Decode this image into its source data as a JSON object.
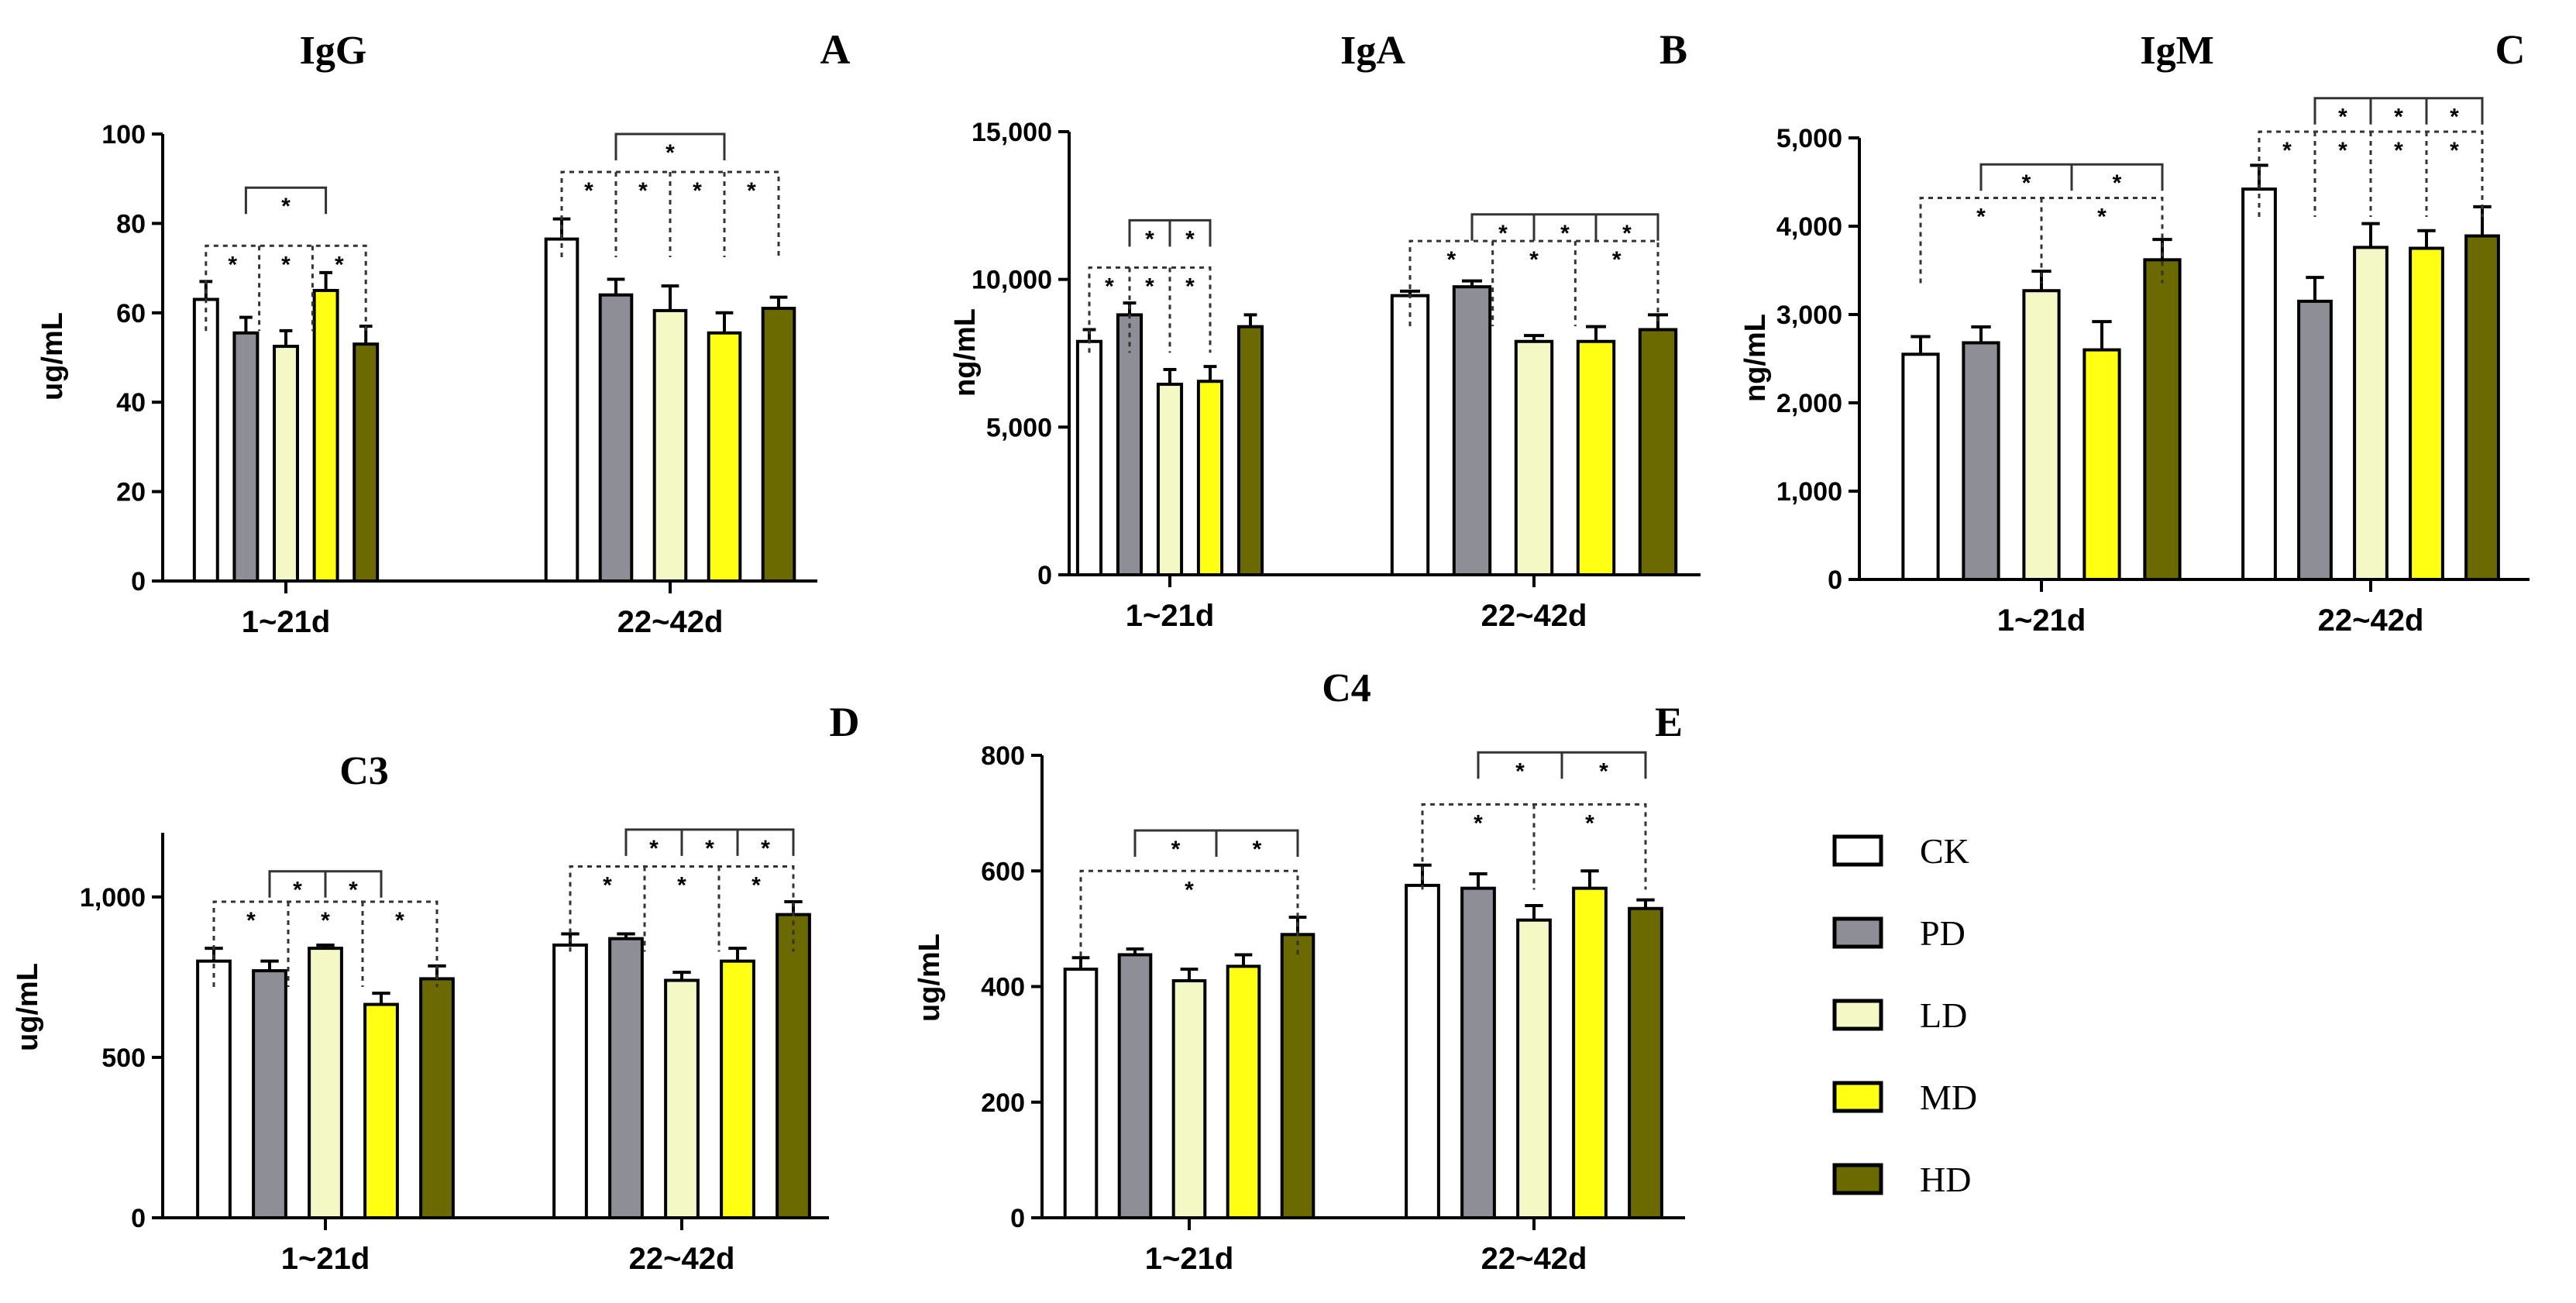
{
  "colors": {
    "CK": "#ffffff",
    "PD": "#8e8e96",
    "LD": "#f4f8c4",
    "MD": "#ffff14",
    "HD": "#6b6a00"
  },
  "legend": [
    "CK",
    "PD",
    "LD",
    "MD",
    "HD"
  ],
  "chart_data": [
    {
      "id": "A",
      "letter": "A",
      "title": "IgG",
      "type": "bar",
      "ylabel": "ug/mL",
      "ylim": [
        0,
        100
      ],
      "yticks": [
        0,
        20,
        40,
        60,
        80,
        100
      ],
      "ytick_labels": [
        "0",
        "20",
        "40",
        "60",
        "80",
        "100"
      ],
      "categories": [
        "1~21d",
        "22~42d"
      ],
      "series": [
        {
          "name": "CK",
          "values": [
            63,
            76.5
          ],
          "errors": [
            4,
            4.5
          ]
        },
        {
          "name": "PD",
          "values": [
            55.5,
            64
          ],
          "errors": [
            3.5,
            3.5
          ]
        },
        {
          "name": "LD",
          "values": [
            52.5,
            60.5
          ],
          "errors": [
            3.5,
            5.5
          ]
        },
        {
          "name": "MD",
          "values": [
            65,
            55.5
          ],
          "errors": [
            4,
            4.5
          ]
        },
        {
          "name": "HD",
          "values": [
            53,
            61
          ],
          "errors": [
            4,
            2.5
          ]
        }
      ],
      "significance": [
        {
          "group": 0,
          "from": 1,
          "to": 3,
          "style": "solid",
          "level": 88,
          "stars": [
            "*"
          ]
        },
        {
          "group": 0,
          "from": 0,
          "to": 4,
          "style": "dotted",
          "level": 75,
          "stars": [
            "*",
            "*",
            "*"
          ]
        },
        {
          "group": 1,
          "from": 1,
          "to": 3,
          "style": "solid",
          "level": 100,
          "stars": [
            "*"
          ]
        },
        {
          "group": 1,
          "from": 0,
          "to": 4,
          "style": "dotted",
          "level": 91.5,
          "stars": [
            "*",
            "*",
            "*",
            "*"
          ]
        }
      ]
    },
    {
      "id": "B",
      "letter": "B",
      "title": "IgA",
      "type": "bar",
      "ylabel": "ng/mL",
      "ylim": [
        0,
        15000
      ],
      "yticks": [
        0,
        5000,
        10000,
        15000
      ],
      "ytick_labels": [
        "0",
        "5,000",
        "10,000",
        "15,000"
      ],
      "categories": [
        "1~21d",
        "22~42d"
      ],
      "series": [
        {
          "name": "CK",
          "values": [
            7900,
            9450
          ],
          "errors": [
            400,
            150
          ]
        },
        {
          "name": "PD",
          "values": [
            8800,
            9750
          ],
          "errors": [
            400,
            200
          ]
        },
        {
          "name": "LD",
          "values": [
            6450,
            7900
          ],
          "errors": [
            500,
            200
          ]
        },
        {
          "name": "MD",
          "values": [
            6550,
            7900
          ],
          "errors": [
            500,
            500
          ]
        },
        {
          "name": "HD",
          "values": [
            8400,
            8300
          ],
          "errors": [
            400,
            500
          ]
        }
      ],
      "significance": [
        {
          "group": 0,
          "from": 1,
          "to": 3,
          "style": "solid",
          "level": 12000,
          "stars": [
            "*",
            "*"
          ]
        },
        {
          "group": 0,
          "from": 0,
          "to": 3,
          "style": "dotted",
          "level": 10400,
          "stars": [
            "*",
            "*",
            "*"
          ]
        },
        {
          "group": 1,
          "from": 1,
          "to": 4,
          "style": "solid",
          "level": 12200,
          "stars": [
            "*",
            "*",
            "*"
          ]
        },
        {
          "group": 1,
          "from": 0,
          "to": 4,
          "style": "dotted",
          "level": 11300,
          "stars": [
            "*",
            "*",
            "*"
          ]
        }
      ]
    },
    {
      "id": "C",
      "letter": "C",
      "title": "IgM",
      "type": "bar",
      "ylabel": "ng/mL",
      "ylim": [
        0,
        5000
      ],
      "yticks": [
        0,
        1000,
        2000,
        3000,
        4000,
        5000
      ],
      "ytick_labels": [
        "0",
        "1,000",
        "2,000",
        "3,000",
        "4,000",
        "5,000"
      ],
      "categories": [
        "1~21d",
        "22~42d"
      ],
      "series": [
        {
          "name": "CK",
          "values": [
            2550,
            4420
          ],
          "errors": [
            200,
            270
          ]
        },
        {
          "name": "PD",
          "values": [
            2680,
            3150
          ],
          "errors": [
            180,
            270
          ]
        },
        {
          "name": "LD",
          "values": [
            3270,
            3760
          ],
          "errors": [
            220,
            270
          ]
        },
        {
          "name": "MD",
          "values": [
            2600,
            3750
          ],
          "errors": [
            320,
            200
          ]
        },
        {
          "name": "HD",
          "values": [
            3620,
            3890
          ],
          "errors": [
            230,
            330
          ]
        }
      ],
      "significance": [
        {
          "group": 0,
          "from": 1,
          "to": 4,
          "style": "solid",
          "level": 4700,
          "stars": [
            "*",
            "*"
          ]
        },
        {
          "group": 0,
          "from": 0,
          "to": 4,
          "style": "dotted",
          "level": 4320,
          "stars": [
            "*",
            "*"
          ]
        },
        {
          "group": 1,
          "from": 1,
          "to": 4,
          "style": "solid",
          "level": 5450,
          "stars": [
            "*",
            "*",
            "*"
          ]
        },
        {
          "group": 1,
          "from": 0,
          "to": 4,
          "style": "dotted",
          "level": 5070,
          "stars": [
            "*",
            "*",
            "*",
            "*"
          ]
        }
      ]
    },
    {
      "id": "D",
      "letter": "D",
      "title": "C3",
      "type": "bar",
      "ylabel": "ug/mL",
      "ylim": [
        0,
        1200
      ],
      "yticks": [
        0,
        500,
        1000
      ],
      "ytick_labels": [
        "0",
        "500",
        "1,000"
      ],
      "categories": [
        "1~21d",
        "22~42d"
      ],
      "series": [
        {
          "name": "CK",
          "values": [
            800,
            850
          ],
          "errors": [
            40,
            35
          ]
        },
        {
          "name": "PD",
          "values": [
            770,
            870
          ],
          "errors": [
            30,
            15
          ]
        },
        {
          "name": "LD",
          "values": [
            840,
            740
          ],
          "errors": [
            10,
            25
          ]
        },
        {
          "name": "MD",
          "values": [
            665,
            800
          ],
          "errors": [
            35,
            40
          ]
        },
        {
          "name": "HD",
          "values": [
            745,
            945
          ],
          "errors": [
            40,
            40
          ]
        }
      ],
      "significance": [
        {
          "group": 0,
          "from": 1,
          "to": 3,
          "style": "solid",
          "level": 1080,
          "stars": [
            "*",
            "*"
          ]
        },
        {
          "group": 0,
          "from": 0,
          "to": 4,
          "style": "dotted",
          "level": 985,
          "stars": [
            "*",
            "*",
            "*"
          ]
        },
        {
          "group": 1,
          "from": 1,
          "to": 4,
          "style": "solid",
          "level": 1210,
          "stars": [
            "*",
            "*",
            "*"
          ]
        },
        {
          "group": 1,
          "from": 0,
          "to": 4,
          "style": "dotted",
          "level": 1095,
          "stars": [
            "*",
            "*",
            "*"
          ]
        }
      ]
    },
    {
      "id": "E",
      "letter": "E",
      "title": "C4",
      "type": "bar",
      "ylabel": "ug/mL",
      "ylim": [
        0,
        800
      ],
      "yticks": [
        0,
        200,
        400,
        600,
        800
      ],
      "ytick_labels": [
        "0",
        "200",
        "400",
        "600",
        "800"
      ],
      "categories": [
        "1~21d",
        "22~42d"
      ],
      "series": [
        {
          "name": "CK",
          "values": [
            430,
            575
          ],
          "errors": [
            20,
            35
          ]
        },
        {
          "name": "PD",
          "values": [
            455,
            570
          ],
          "errors": [
            10,
            25
          ]
        },
        {
          "name": "LD",
          "values": [
            410,
            515
          ],
          "errors": [
            20,
            25
          ]
        },
        {
          "name": "MD",
          "values": [
            435,
            570
          ],
          "errors": [
            20,
            30
          ]
        },
        {
          "name": "HD",
          "values": [
            490,
            535
          ],
          "errors": [
            30,
            15
          ]
        }
      ],
      "significance": [
        {
          "group": 0,
          "from": 1,
          "to": 4,
          "style": "solid",
          "level": 670,
          "stars": [
            "*",
            "*"
          ]
        },
        {
          "group": 0,
          "from": 0,
          "to": 4,
          "style": "dotted",
          "level": 600,
          "stars": [
            "*"
          ]
        },
        {
          "group": 1,
          "from": 1,
          "to": 4,
          "style": "solid",
          "level": 805,
          "stars": [
            "*",
            "*"
          ]
        },
        {
          "group": 1,
          "from": 0,
          "to": 4,
          "style": "dotted",
          "level": 715,
          "stars": [
            "*",
            "*"
          ]
        }
      ]
    }
  ]
}
